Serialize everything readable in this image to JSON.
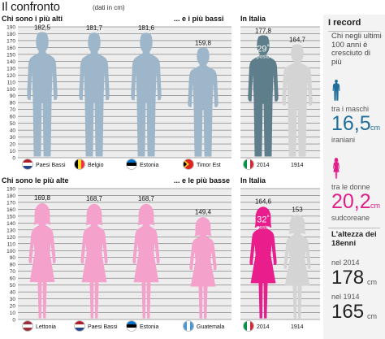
{
  "header": {
    "title": "Il confronto",
    "subtitle": "(dati in cm)"
  },
  "colors": {
    "male": "#9db6c9",
    "male_italy": "#5f7e8c",
    "female": "#f4a1cc",
    "female_italy": "#e91e8c",
    "gray": "#d4d4d4",
    "accent_blue": "#1f6f9a",
    "accent_pink": "#e0208a"
  },
  "chart_data": [
    {
      "type": "bar",
      "title": "Chi sono i più alti",
      "subtitle_short": "... e i più bassi",
      "ylim": [
        0,
        190
      ],
      "ticks": [
        0,
        10,
        20,
        30,
        40,
        50,
        60,
        70,
        80,
        90,
        100,
        110,
        120,
        130,
        140,
        150,
        160,
        170,
        180,
        190
      ],
      "categories": [
        "Paesi Bassi",
        "Belgio",
        "Estonia",
        "Timor Est"
      ],
      "values": [
        182.5,
        181.7,
        181.6,
        159.8
      ],
      "labels": [
        "182,5",
        "181,7",
        "181,6",
        "159,8"
      ],
      "flag_icons": [
        "netherlands-flag-icon",
        "belgium-flag-icon",
        "estonia-flag-icon",
        "timor-leste-flag-icon"
      ]
    },
    {
      "type": "bar",
      "title": "In Italia",
      "ylim": [
        0,
        190
      ],
      "categories": [
        "2014",
        "1914"
      ],
      "values": [
        177.8,
        164.7
      ],
      "labels": [
        "177,8",
        "164,7"
      ],
      "rank_num": "29",
      "rank_sup": "°",
      "rank_word": "posto",
      "flag_icons": [
        "italy-flag-icon",
        ""
      ]
    },
    {
      "type": "bar",
      "title": "Chi sono le più alte",
      "subtitle_short": "... e le più basse",
      "ylim": [
        0,
        190
      ],
      "ticks": [
        0,
        10,
        20,
        30,
        40,
        50,
        60,
        70,
        80,
        90,
        100,
        110,
        120,
        130,
        140,
        150,
        160,
        170,
        180,
        190
      ],
      "categories": [
        "Lettonia",
        "Paesi Bassi",
        "Estonia",
        "Guatemala"
      ],
      "values": [
        169.8,
        168.7,
        168.7,
        149.4
      ],
      "labels": [
        "169,8",
        "168,7",
        "168,7",
        "149,4"
      ],
      "flag_icons": [
        "latvia-flag-icon",
        "netherlands-flag-icon",
        "estonia-flag-icon",
        "guatemala-flag-icon"
      ]
    },
    {
      "type": "bar",
      "title": "In Italia",
      "ylim": [
        0,
        190
      ],
      "categories": [
        "2014",
        "1914"
      ],
      "values": [
        164.6,
        153
      ],
      "labels": [
        "164,6",
        "153"
      ],
      "rank_num": "32",
      "rank_sup": "°",
      "rank_word": "posto",
      "flag_icons": [
        "italy-flag-icon",
        ""
      ]
    }
  ],
  "sidebar": {
    "title": "I record",
    "question": "Chi negli ultimi 100 anni è cresciuto di più",
    "male_label": "tra i maschi",
    "male_value": "16,5",
    "male_unit": "cm",
    "male_nation": "iraniani",
    "female_label": "tra le donne",
    "female_value": "20,2",
    "female_unit": "cm",
    "female_nation": "sudcoreane",
    "age_title": "L'altezza dei 18enni",
    "y2014_label": "nel 2014",
    "y2014_value": "178",
    "y1914_label": "nel 1914",
    "y1914_value": "165",
    "unit": "cm"
  }
}
